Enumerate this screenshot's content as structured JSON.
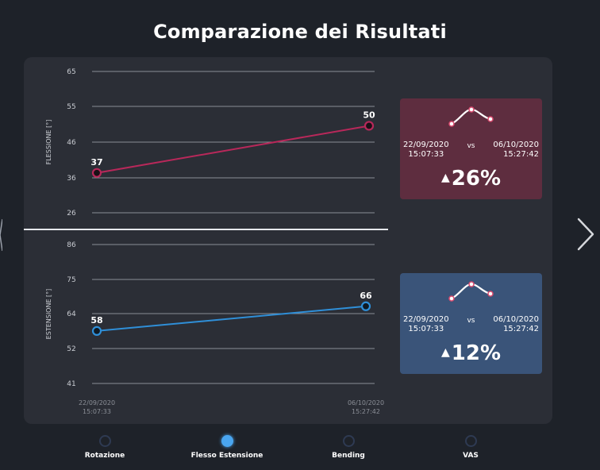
{
  "title": "Comparazione dei Risultati",
  "chart_data": [
    {
      "type": "line",
      "ylabel": "FLESSIONE [°]",
      "y_ticks": [
        26,
        36,
        46,
        55,
        65
      ],
      "x": [
        "22/09/2020 15:07:33",
        "06/10/2020 15:27:42"
      ],
      "series": [
        {
          "values": [
            37,
            50
          ],
          "color": "#b8285a"
        }
      ]
    },
    {
      "type": "line",
      "ylabel": "ESTENSIONE [°]",
      "y_ticks": [
        41,
        52,
        64,
        75,
        86
      ],
      "x": [
        "22/09/2020 15:07:33",
        "06/10/2020 15:27:42"
      ],
      "x_tick_labels": [
        [
          "22/09/2020",
          "15:07:33"
        ],
        [
          "06/10/2020",
          "15:27:42"
        ]
      ],
      "series": [
        {
          "values": [
            58,
            66
          ],
          "color": "#2f8fd8"
        }
      ]
    }
  ],
  "cards": {
    "flexion": {
      "date1": "22/09/2020",
      "time1": "15:07:33",
      "vs": "vs",
      "date2": "06/10/2020",
      "time2": "15:27:42",
      "arrow": "▲",
      "percent": "26%"
    },
    "extension": {
      "date1": "22/09/2020",
      "time1": "15:07:33",
      "vs": "vs",
      "date2": "06/10/2020",
      "time2": "15:27:42",
      "arrow": "▲",
      "percent": "12%"
    }
  },
  "tabs": [
    {
      "label": "Rotazione",
      "active": false
    },
    {
      "label": "Flesso Estensione",
      "active": true
    },
    {
      "label": "Bending",
      "active": false
    },
    {
      "label": "VAS",
      "active": false
    }
  ],
  "colors": {
    "background": "#1e2229",
    "panel": "#2b2e36",
    "flexion_line": "#b8285a",
    "extension_line": "#2f8fd8",
    "flexion_card": "#5e2d3f",
    "extension_card": "#3a5479",
    "active_tab": "#4aa6f0"
  },
  "icons": {
    "next": "chevron-right-icon",
    "sparkline": "sparkline-icon"
  }
}
